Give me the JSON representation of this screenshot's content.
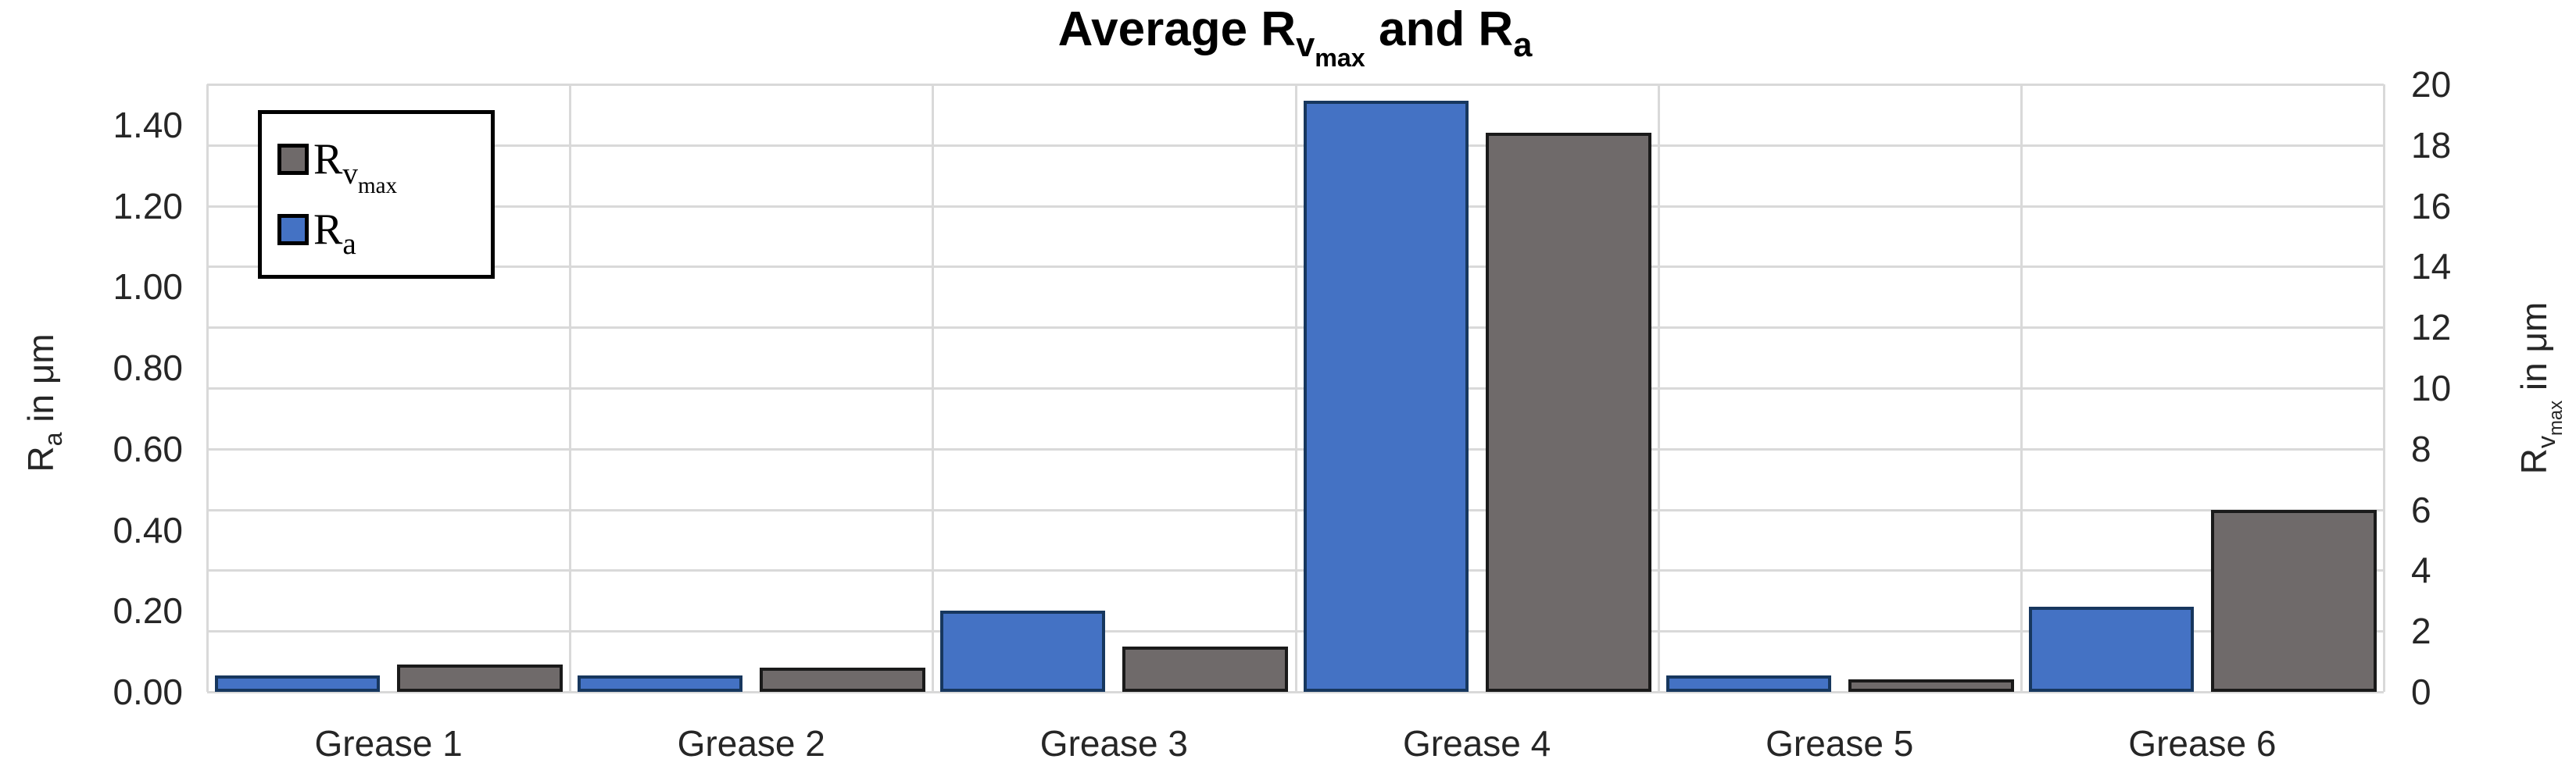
{
  "chart_data": {
    "type": "bar",
    "title": "Average Rvmax and Ra",
    "title_parts": [
      {
        "t": "Average R",
        "l": 0
      },
      {
        "t": "v",
        "l": 1
      },
      {
        "t": "max",
        "l": 2
      },
      {
        "t": " and R",
        "l": 0
      },
      {
        "t": "a",
        "l": 1
      }
    ],
    "categories": [
      "Grease 1",
      "Grease 2",
      "Grease 3",
      "Grease 4",
      "Grease 5",
      "Grease 6"
    ],
    "series": [
      {
        "name": "Rvmax",
        "name_parts": [
          {
            "t": "R",
            "l": 0
          },
          {
            "t": "v",
            "l": 1
          },
          {
            "t": "max",
            "l": 2
          }
        ],
        "axis": "right",
        "slot": 1,
        "fill_color": "#6F6A6A",
        "border_color": "#1A1A1A",
        "values": [
          0.9,
          0.8,
          1.5,
          18.4,
          0.4,
          6.0
        ]
      },
      {
        "name": "Ra",
        "name_parts": [
          {
            "t": "R",
            "l": 0
          },
          {
            "t": "a",
            "l": 1
          }
        ],
        "axis": "left",
        "slot": 0,
        "fill_color": "#4472C4",
        "border_color": "#17375E",
        "values": [
          0.04,
          0.04,
          0.2,
          1.46,
          0.04,
          0.21
        ]
      }
    ],
    "legend_order": [
      "Rvmax",
      "Ra"
    ],
    "legend_position": "top-left-inside",
    "grid": true,
    "gridline_color": "#D9D9D9",
    "axes": {
      "left": {
        "title": "Ra in um",
        "title_parts": [
          {
            "t": "R",
            "l": 0
          },
          {
            "t": "a",
            "l": 1
          },
          {
            "t": " in μm",
            "l": 0
          }
        ],
        "ylim": [
          0,
          1.5
        ],
        "ticks": [
          {
            "label": "0.00",
            "value": 0.0
          },
          {
            "label": "0.20",
            "value": 0.2
          },
          {
            "label": "0.40",
            "value": 0.4
          },
          {
            "label": "0.60",
            "value": 0.6
          },
          {
            "label": "0.80",
            "value": 0.8
          },
          {
            "label": "1.00",
            "value": 1.0
          },
          {
            "label": "1.20",
            "value": 1.2
          },
          {
            "label": "1.40",
            "value": 1.4
          }
        ]
      },
      "right": {
        "title": "Rvmax in um",
        "title_parts": [
          {
            "t": "R",
            "l": 0
          },
          {
            "t": "v",
            "l": 1
          },
          {
            "t": "max",
            "l": 2
          },
          {
            "t": "  in μm",
            "l": 0
          }
        ],
        "ylim": [
          0,
          20
        ],
        "ticks": [
          {
            "label": "0",
            "value": 0
          },
          {
            "label": "2",
            "value": 2
          },
          {
            "label": "4",
            "value": 4
          },
          {
            "label": "6",
            "value": 6
          },
          {
            "label": "8",
            "value": 8
          },
          {
            "label": "10",
            "value": 10
          },
          {
            "label": "12",
            "value": 12
          },
          {
            "label": "14",
            "value": 14
          },
          {
            "label": "16",
            "value": 16
          },
          {
            "label": "18",
            "value": 18
          },
          {
            "label": "20",
            "value": 20
          }
        ]
      }
    }
  }
}
